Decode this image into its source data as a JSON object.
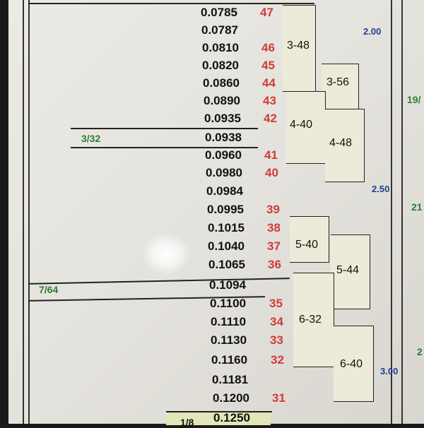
{
  "rows": [
    {
      "decimal": "0.0785",
      "number": "47"
    },
    {
      "decimal": "0.0787",
      "number": ""
    },
    {
      "decimal": "0.0810",
      "number": "46"
    },
    {
      "decimal": "0.0820",
      "number": "45"
    },
    {
      "decimal": "0.0860",
      "number": "44"
    },
    {
      "decimal": "0.0890",
      "number": "43"
    },
    {
      "decimal": "0.0935",
      "number": "42"
    },
    {
      "decimal": "0.0938",
      "number": ""
    },
    {
      "decimal": "0.0960",
      "number": "41"
    },
    {
      "decimal": "0.0980",
      "number": "40"
    },
    {
      "decimal": "0.0984",
      "number": ""
    },
    {
      "decimal": "0.0995",
      "number": "39"
    },
    {
      "decimal": "0.1015",
      "number": "38"
    },
    {
      "decimal": "0.1040",
      "number": "37"
    },
    {
      "decimal": "0.1065",
      "number": "36"
    },
    {
      "decimal": "0.1094",
      "number": ""
    },
    {
      "decimal": "0.1100",
      "number": "35"
    },
    {
      "decimal": "0.1110",
      "number": "34"
    },
    {
      "decimal": "0.1130",
      "number": "33"
    },
    {
      "decimal": "0.1160",
      "number": "32"
    },
    {
      "decimal": "0.1181",
      "number": ""
    },
    {
      "decimal": "0.1200",
      "number": "31"
    },
    {
      "decimal": "0.1250",
      "number": ""
    }
  ],
  "fractions": {
    "f1": "3/32",
    "f2": "7/64",
    "f3": "1/8"
  },
  "metric": {
    "m1": "2.00",
    "m2": "2.50",
    "m3": "3.00",
    "r1": "19/",
    "r2": "21",
    "r3": "2"
  },
  "taps": {
    "t1": "3-48",
    "t2": "3-56",
    "t3": "4-40",
    "t4": "4-48",
    "t5": "5-40",
    "t6": "5-44",
    "t7": "6-32",
    "t8": "6-40"
  },
  "colors": {
    "decimal": "#111111",
    "number": "#d23a3a",
    "fraction": "#2e7d32",
    "metric": "#1f3f8f"
  }
}
